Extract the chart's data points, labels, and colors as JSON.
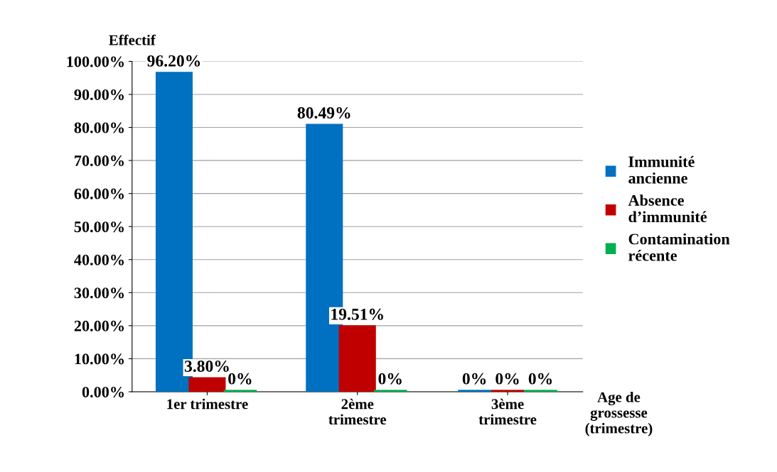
{
  "chart_data": {
    "type": "bar",
    "ylabel": "Effectif",
    "xlabel": "Age de\ngrossesse\n(trimestre)",
    "categories": [
      "1er trimestre",
      "2ème\ntrimestre",
      "3ème\ntrimestre"
    ],
    "series": [
      {
        "name": "Immunité\nancienne",
        "color": "#0070c0",
        "values": [
          96.2,
          80.49,
          0
        ],
        "value_labels": [
          "96.20%",
          "80.49%",
          "0%"
        ]
      },
      {
        "name": "Absence\nd’immunité",
        "color": "#c00000",
        "values": [
          3.8,
          19.51,
          0
        ],
        "value_labels": [
          "3.80%",
          "19.51%",
          "0%"
        ]
      },
      {
        "name": "Contamination\nrécente",
        "color": "#00b050",
        "values": [
          0,
          0,
          0
        ],
        "value_labels": [
          "0%",
          "0%",
          "0%"
        ]
      }
    ],
    "ylim": [
      0,
      100
    ],
    "yticks": [
      {
        "value": 0,
        "label": "0.00%"
      },
      {
        "value": 10,
        "label": "10.00%"
      },
      {
        "value": 20,
        "label": "20.00%"
      },
      {
        "value": 30,
        "label": "30.00%"
      },
      {
        "value": 40,
        "label": "40.00%"
      },
      {
        "value": 50,
        "label": "50.00%"
      },
      {
        "value": 60,
        "label": "60.00%"
      },
      {
        "value": 70,
        "label": "70.00%"
      },
      {
        "value": 80,
        "label": "80.00%"
      },
      {
        "value": 90,
        "label": "90.00%"
      },
      {
        "value": 100,
        "label": "100.00%"
      }
    ],
    "grid": "y",
    "legend": "right"
  }
}
